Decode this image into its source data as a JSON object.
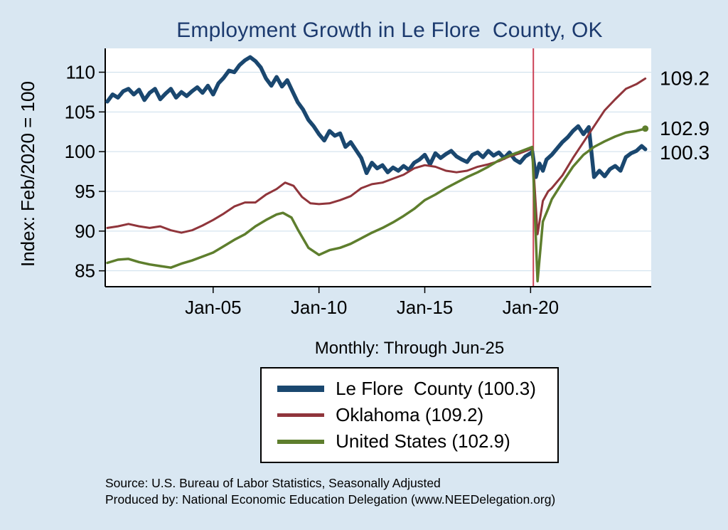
{
  "title": "Employment Growth in Le Flore  County, OK",
  "subtitle": "Monthly: Through Jun-25",
  "y_axis_label": "Index: Feb/2020 = 100",
  "source_line1": "Source: U.S. Bureau of Labor Statistics, Seasonally Adjusted",
  "source_line2": "Produced by: National Economic Education Delegation (www.NEEDelegation.org)",
  "colors": {
    "background": "#d9e7f2",
    "title": "#1c3a6e",
    "plot_background": "#ffffff",
    "grid": "#ccdeeb",
    "axis": "#000000",
    "event_line": "#cc4257"
  },
  "end_labels": [
    {
      "text": "109.2",
      "value": 109.2
    },
    {
      "text": "102.9",
      "value": 102.9
    },
    {
      "text": "100.3",
      "value": 100.3
    }
  ],
  "legend": [
    {
      "label": "Le Flore  County (100.3)",
      "color": "#1a476f"
    },
    {
      "label": "Oklahoma (109.2)",
      "color": "#90353b"
    },
    {
      "label": "United States (102.9)",
      "color": "#5e7e2d"
    }
  ],
  "chart_data": {
    "type": "line",
    "title": "Employment Growth in Le Flore  County, OK",
    "subtitle": "Monthly: Through Jun-25",
    "xlabel": "",
    "ylabel": "Index: Feb/2020 = 100",
    "xlim": [
      1999.9,
      2025.7
    ],
    "ylim": [
      83,
      113
    ],
    "grid": true,
    "legend_position": "bottom",
    "y_ticks": [
      85,
      90,
      95,
      100,
      105,
      110
    ],
    "x_ticks": [
      {
        "value": 2005,
        "label": "Jan-05"
      },
      {
        "value": 2010,
        "label": "Jan-10"
      },
      {
        "value": 2015,
        "label": "Jan-15"
      },
      {
        "value": 2020,
        "label": "Jan-20"
      }
    ],
    "event_line": {
      "x": 2020.13,
      "color": "#cc4257"
    },
    "series": [
      {
        "name": "Le Flore  County",
        "color": "#1a476f",
        "width": 5.5,
        "last_value": 100.3,
        "points": [
          [
            2000,
            106.3
          ],
          [
            2000.25,
            107.2
          ],
          [
            2000.5,
            106.8
          ],
          [
            2000.75,
            107.6
          ],
          [
            2001,
            107.9
          ],
          [
            2001.25,
            107.2
          ],
          [
            2001.5,
            107.8
          ],
          [
            2001.75,
            106.5
          ],
          [
            2002,
            107.4
          ],
          [
            2002.25,
            107.9
          ],
          [
            2002.5,
            106.6
          ],
          [
            2002.75,
            107.3
          ],
          [
            2003,
            107.9
          ],
          [
            2003.25,
            106.8
          ],
          [
            2003.5,
            107.5
          ],
          [
            2003.75,
            107.0
          ],
          [
            2004,
            107.6
          ],
          [
            2004.25,
            108.1
          ],
          [
            2004.5,
            107.4
          ],
          [
            2004.75,
            108.3
          ],
          [
            2005,
            107.2
          ],
          [
            2005.25,
            108.6
          ],
          [
            2005.5,
            109.3
          ],
          [
            2005.75,
            110.2
          ],
          [
            2006,
            110.0
          ],
          [
            2006.25,
            110.9
          ],
          [
            2006.5,
            111.5
          ],
          [
            2006.75,
            111.9
          ],
          [
            2007,
            111.4
          ],
          [
            2007.25,
            110.6
          ],
          [
            2007.5,
            109.2
          ],
          [
            2007.75,
            108.3
          ],
          [
            2008,
            109.4
          ],
          [
            2008.25,
            108.2
          ],
          [
            2008.5,
            109.0
          ],
          [
            2008.75,
            107.6
          ],
          [
            2009,
            106.2
          ],
          [
            2009.25,
            105.3
          ],
          [
            2009.5,
            104.0
          ],
          [
            2009.75,
            103.2
          ],
          [
            2010,
            102.2
          ],
          [
            2010.25,
            101.4
          ],
          [
            2010.5,
            102.6
          ],
          [
            2010.75,
            102.0
          ],
          [
            2011,
            102.3
          ],
          [
            2011.25,
            100.6
          ],
          [
            2011.5,
            101.2
          ],
          [
            2011.75,
            100.2
          ],
          [
            2012,
            99.2
          ],
          [
            2012.25,
            97.3
          ],
          [
            2012.5,
            98.6
          ],
          [
            2012.75,
            97.9
          ],
          [
            2013,
            98.3
          ],
          [
            2013.25,
            97.4
          ],
          [
            2013.5,
            98.0
          ],
          [
            2013.75,
            97.6
          ],
          [
            2014,
            98.2
          ],
          [
            2014.25,
            97.7
          ],
          [
            2014.5,
            98.6
          ],
          [
            2014.75,
            99.0
          ],
          [
            2015,
            99.6
          ],
          [
            2015.25,
            98.4
          ],
          [
            2015.5,
            99.8
          ],
          [
            2015.75,
            99.2
          ],
          [
            2016,
            99.7
          ],
          [
            2016.25,
            100.1
          ],
          [
            2016.5,
            99.4
          ],
          [
            2016.75,
            99.0
          ],
          [
            2017,
            98.7
          ],
          [
            2017.25,
            99.6
          ],
          [
            2017.5,
            99.9
          ],
          [
            2017.75,
            99.3
          ],
          [
            2018,
            100.1
          ],
          [
            2018.25,
            99.5
          ],
          [
            2018.5,
            99.9
          ],
          [
            2018.75,
            99.2
          ],
          [
            2019,
            99.9
          ],
          [
            2019.25,
            99.0
          ],
          [
            2019.5,
            98.6
          ],
          [
            2019.75,
            99.4
          ],
          [
            2020,
            99.8
          ],
          [
            2020.08,
            100.0
          ],
          [
            2020.25,
            96.8
          ],
          [
            2020.42,
            98.5
          ],
          [
            2020.58,
            97.6
          ],
          [
            2020.75,
            99.0
          ],
          [
            2021,
            99.6
          ],
          [
            2021.25,
            100.4
          ],
          [
            2021.5,
            101.2
          ],
          [
            2021.75,
            101.8
          ],
          [
            2022,
            102.6
          ],
          [
            2022.25,
            103.2
          ],
          [
            2022.5,
            102.2
          ],
          [
            2022.75,
            103.1
          ],
          [
            2023,
            96.8
          ],
          [
            2023.25,
            97.6
          ],
          [
            2023.5,
            96.9
          ],
          [
            2023.75,
            97.8
          ],
          [
            2024,
            98.2
          ],
          [
            2024.25,
            97.6
          ],
          [
            2024.5,
            99.3
          ],
          [
            2024.75,
            99.8
          ],
          [
            2025,
            100.1
          ],
          [
            2025.25,
            100.7
          ],
          [
            2025.42,
            100.3
          ]
        ]
      },
      {
        "name": "Oklahoma",
        "color": "#90353b",
        "width": 3,
        "last_value": 109.2,
        "points": [
          [
            2000,
            90.4
          ],
          [
            2000.5,
            90.6
          ],
          [
            2001,
            90.9
          ],
          [
            2001.5,
            90.6
          ],
          [
            2002,
            90.4
          ],
          [
            2002.5,
            90.6
          ],
          [
            2003,
            90.1
          ],
          [
            2003.5,
            89.8
          ],
          [
            2004,
            90.1
          ],
          [
            2004.5,
            90.7
          ],
          [
            2005,
            91.4
          ],
          [
            2005.5,
            92.2
          ],
          [
            2006,
            93.1
          ],
          [
            2006.5,
            93.6
          ],
          [
            2007,
            93.6
          ],
          [
            2007.5,
            94.6
          ],
          [
            2008,
            95.3
          ],
          [
            2008.4,
            96.1
          ],
          [
            2008.8,
            95.7
          ],
          [
            2009.2,
            94.3
          ],
          [
            2009.6,
            93.5
          ],
          [
            2010,
            93.4
          ],
          [
            2010.5,
            93.5
          ],
          [
            2011,
            93.9
          ],
          [
            2011.5,
            94.4
          ],
          [
            2012,
            95.4
          ],
          [
            2012.5,
            95.9
          ],
          [
            2013,
            96.1
          ],
          [
            2013.5,
            96.6
          ],
          [
            2014,
            97.1
          ],
          [
            2014.5,
            97.9
          ],
          [
            2015,
            98.3
          ],
          [
            2015.5,
            98.1
          ],
          [
            2016,
            97.6
          ],
          [
            2016.5,
            97.4
          ],
          [
            2017,
            97.6
          ],
          [
            2017.5,
            98.1
          ],
          [
            2018,
            98.4
          ],
          [
            2018.5,
            98.8
          ],
          [
            2019,
            99.4
          ],
          [
            2019.5,
            99.8
          ],
          [
            2020.08,
            100.4
          ],
          [
            2020.33,
            89.6
          ],
          [
            2020.58,
            93.8
          ],
          [
            2020.83,
            95.0
          ],
          [
            2021,
            95.4
          ],
          [
            2021.5,
            97.0
          ],
          [
            2022,
            99.2
          ],
          [
            2022.5,
            101.2
          ],
          [
            2023,
            103.2
          ],
          [
            2023.5,
            105.2
          ],
          [
            2024,
            106.6
          ],
          [
            2024.5,
            107.9
          ],
          [
            2025,
            108.5
          ],
          [
            2025.42,
            109.2
          ]
        ]
      },
      {
        "name": "United States",
        "color": "#5e7e2d",
        "width": 3.5,
        "last_value": 102.9,
        "points": [
          [
            2000,
            86.0
          ],
          [
            2000.5,
            86.4
          ],
          [
            2001,
            86.5
          ],
          [
            2001.5,
            86.1
          ],
          [
            2002,
            85.8
          ],
          [
            2002.5,
            85.6
          ],
          [
            2003,
            85.4
          ],
          [
            2003.5,
            85.9
          ],
          [
            2004,
            86.3
          ],
          [
            2004.5,
            86.8
          ],
          [
            2005,
            87.3
          ],
          [
            2005.5,
            88.1
          ],
          [
            2006,
            88.9
          ],
          [
            2006.5,
            89.6
          ],
          [
            2007,
            90.6
          ],
          [
            2007.5,
            91.4
          ],
          [
            2008,
            92.1
          ],
          [
            2008.3,
            92.3
          ],
          [
            2008.7,
            91.7
          ],
          [
            2009,
            90.2
          ],
          [
            2009.5,
            87.9
          ],
          [
            2010,
            87.0
          ],
          [
            2010.5,
            87.6
          ],
          [
            2011,
            87.9
          ],
          [
            2011.5,
            88.4
          ],
          [
            2012,
            89.1
          ],
          [
            2012.5,
            89.8
          ],
          [
            2013,
            90.4
          ],
          [
            2013.5,
            91.1
          ],
          [
            2014,
            91.9
          ],
          [
            2014.5,
            92.8
          ],
          [
            2015,
            93.9
          ],
          [
            2015.5,
            94.6
          ],
          [
            2016,
            95.4
          ],
          [
            2016.5,
            96.1
          ],
          [
            2017,
            96.8
          ],
          [
            2017.5,
            97.4
          ],
          [
            2018,
            98.1
          ],
          [
            2018.5,
            98.9
          ],
          [
            2019,
            99.5
          ],
          [
            2019.5,
            100.0
          ],
          [
            2020.08,
            100.6
          ],
          [
            2020.33,
            83.7
          ],
          [
            2020.58,
            91.2
          ],
          [
            2020.83,
            92.8
          ],
          [
            2021,
            94.0
          ],
          [
            2021.5,
            96.1
          ],
          [
            2022,
            98.1
          ],
          [
            2022.5,
            99.6
          ],
          [
            2023,
            100.6
          ],
          [
            2023.5,
            101.3
          ],
          [
            2024,
            101.9
          ],
          [
            2024.5,
            102.4
          ],
          [
            2025,
            102.6
          ],
          [
            2025.42,
            102.9
          ]
        ]
      }
    ]
  }
}
